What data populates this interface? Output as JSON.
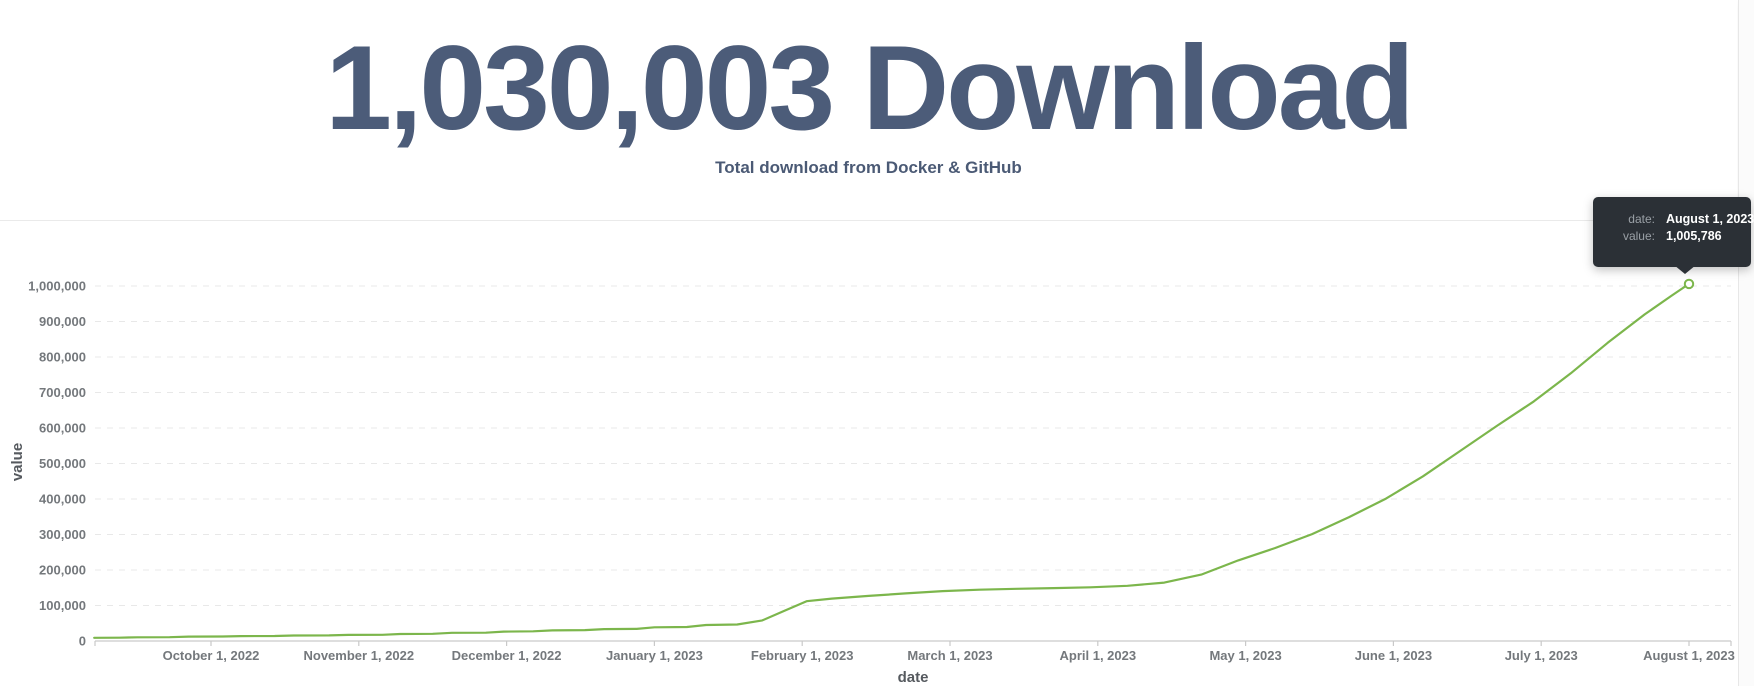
{
  "header": {
    "title": "1,030,003 Download",
    "subtitle": "Total download from Docker & GitHub"
  },
  "tooltip": {
    "rows": [
      {
        "label": "date:",
        "value": "August 1, 2023"
      },
      {
        "label": "value:",
        "value": "1,005,786"
      }
    ]
  },
  "chart_data": {
    "type": "line",
    "title": "1,030,003 Download",
    "subtitle": "Total download from Docker & GitHub",
    "xlabel": "date",
    "ylabel": "value",
    "grid": "horizontal dashed",
    "legend_position": "none",
    "line_color": "#7cb64c",
    "x_tick_labels": [
      "October 1, 2022",
      "November 1, 2022",
      "December 1, 2022",
      "January 1, 2023",
      "February 1, 2023",
      "March 1, 2023",
      "April 1, 2023",
      "May 1, 2023",
      "June 1, 2023",
      "July 1, 2023",
      "August 1, 2023"
    ],
    "y_tick_labels": [
      "0",
      "100,000",
      "200,000",
      "300,000",
      "400,000",
      "500,000",
      "600,000",
      "700,000",
      "800,000",
      "900,000",
      "1,000,000"
    ],
    "ylim": [
      0,
      1090000
    ],
    "xlim_months_from_oct1_2022": [
      -0.79,
      10.28
    ],
    "values_at_month_ticks": [
      13000,
      17500,
      27000,
      38500,
      112000,
      141000,
      151200,
      230000,
      401000,
      675000,
      1005786
    ],
    "highlighted_point": {
      "date": "August 1, 2023",
      "value": 1005786,
      "value_formatted": "1,005,786"
    },
    "series": [
      {
        "name": "value",
        "points": [
          [
            -0.79,
            9000
          ],
          [
            -0.62,
            9200
          ],
          [
            -0.5,
            10300
          ],
          [
            -0.28,
            10600
          ],
          [
            -0.15,
            12300
          ],
          [
            0.08,
            12600
          ],
          [
            0.2,
            13800
          ],
          [
            0.43,
            14100
          ],
          [
            0.56,
            15400
          ],
          [
            0.8,
            15700
          ],
          [
            0.93,
            17100
          ],
          [
            1.16,
            17500
          ],
          [
            1.28,
            19800
          ],
          [
            1.5,
            20300
          ],
          [
            1.63,
            23000
          ],
          [
            1.86,
            23500
          ],
          [
            1.98,
            26500
          ],
          [
            2.18,
            27200
          ],
          [
            2.31,
            30000
          ],
          [
            2.53,
            30600
          ],
          [
            2.66,
            33500
          ],
          [
            2.88,
            34200
          ],
          [
            3.0,
            38500
          ],
          [
            3.22,
            39400
          ],
          [
            3.35,
            45000
          ],
          [
            3.56,
            46500
          ],
          [
            3.73,
            58000
          ],
          [
            3.88,
            85000
          ],
          [
            4.03,
            112000
          ],
          [
            4.2,
            119500
          ],
          [
            4.45,
            127000
          ],
          [
            4.7,
            134000
          ],
          [
            4.95,
            140500
          ],
          [
            5.2,
            144500
          ],
          [
            5.45,
            147000
          ],
          [
            5.7,
            149000
          ],
          [
            5.95,
            151200
          ],
          [
            6.2,
            155500
          ],
          [
            6.45,
            164500
          ],
          [
            6.7,
            187000
          ],
          [
            6.95,
            227000
          ],
          [
            7.2,
            262000
          ],
          [
            7.45,
            301000
          ],
          [
            7.7,
            349000
          ],
          [
            7.95,
            401000
          ],
          [
            8.2,
            464000
          ],
          [
            8.45,
            535000
          ],
          [
            8.7,
            606000
          ],
          [
            8.95,
            675000
          ],
          [
            9.2,
            754000
          ],
          [
            9.45,
            840000
          ],
          [
            9.7,
            920000
          ],
          [
            9.88,
            972000
          ],
          [
            10.0,
            1005786
          ]
        ]
      }
    ],
    "colors": {
      "line": "#7cb64c",
      "marker_fill": "#ffffff",
      "gridline": "#e8e8e8",
      "axis_line": "#c9c9c9",
      "tick_label": "#74787c",
      "axis_title": "#565a5f",
      "title": "#4c5c79",
      "tooltip_bg": "#2b3036",
      "tooltip_label": "#9aa0a6",
      "tooltip_value": "#ffffff"
    }
  }
}
